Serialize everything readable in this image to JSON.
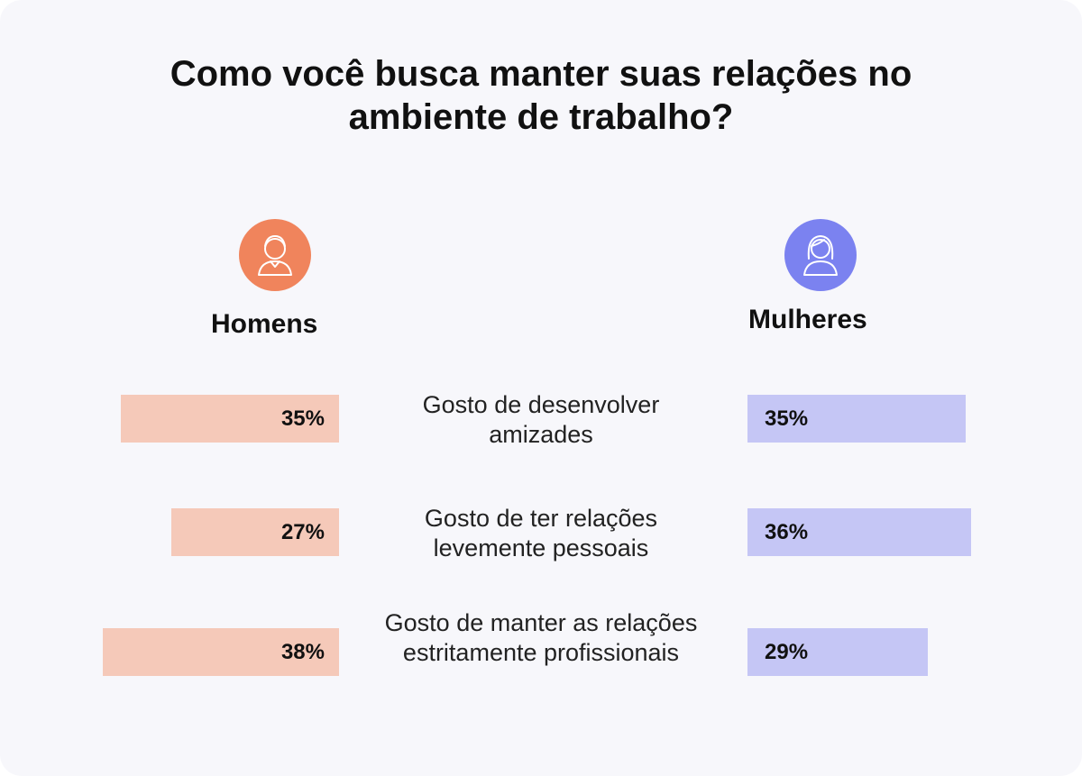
{
  "title": "Como você busca manter suas relações no ambiente de trabalho?",
  "colors": {
    "men_accent": "#f0845c",
    "women_accent": "#7b82f0",
    "men_bar": "#f5c9b9",
    "women_bar": "#c5c6f5",
    "background": "#f7f7fb"
  },
  "groups": {
    "men": {
      "label": "Homens",
      "icon": "man-avatar-icon"
    },
    "women": {
      "label": "Mulheres",
      "icon": "woman-avatar-icon"
    }
  },
  "chart_data": {
    "type": "bar",
    "title": "Como você busca manter suas relações no ambiente de trabalho?",
    "categories": [
      "Gosto de desenvolver amizades",
      "Gosto de ter relações levemente pessoais",
      "Gosto de manter as relações estritamente profissionais"
    ],
    "series": [
      {
        "name": "Homens",
        "values": [
          35,
          27,
          38
        ],
        "labels": [
          "35%",
          "27%",
          "38%"
        ]
      },
      {
        "name": "Mulheres",
        "values": [
          35,
          36,
          29
        ],
        "labels": [
          "35%",
          "36%",
          "29%"
        ]
      }
    ],
    "value_unit": "%",
    "orientation": "horizontal-butterfly"
  }
}
